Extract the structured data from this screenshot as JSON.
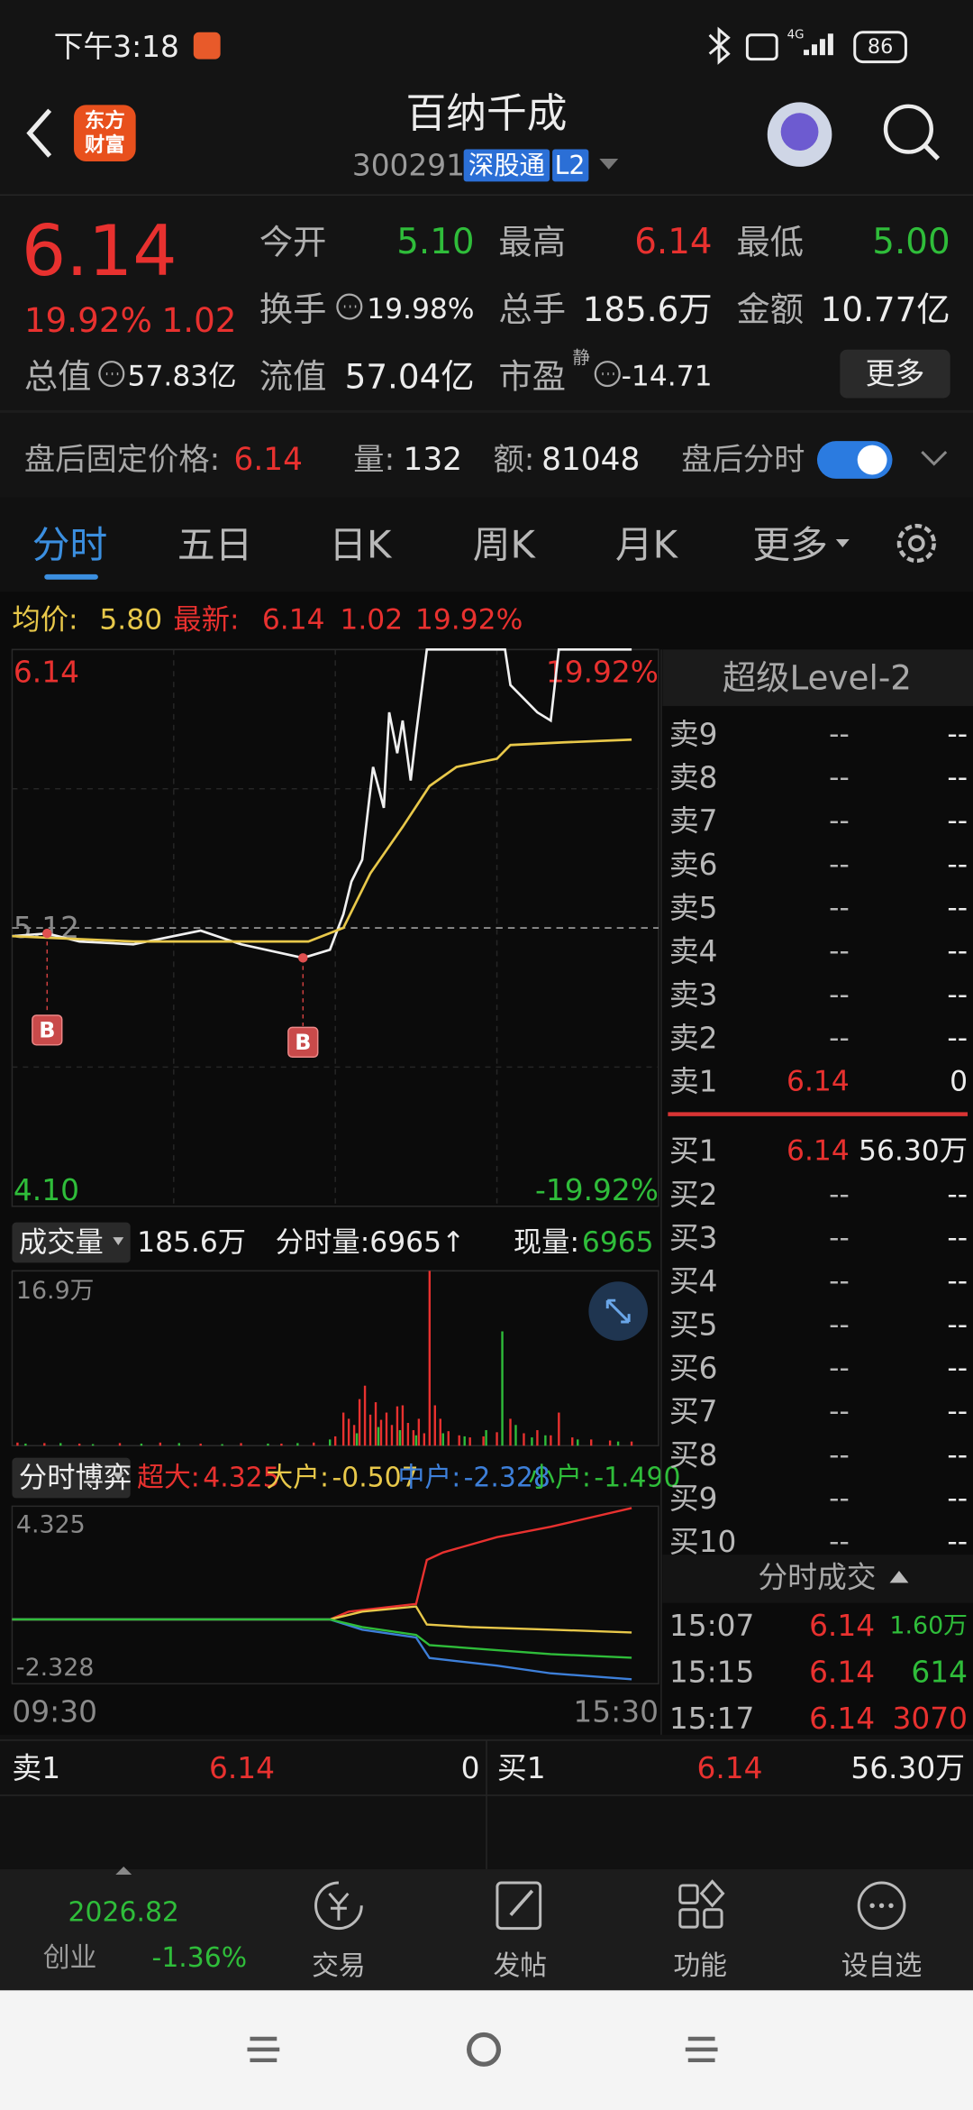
{
  "status_bar": {
    "time": "下午3:18",
    "network": "4G",
    "battery": "86"
  },
  "header": {
    "logo": [
      "东方",
      "财富"
    ],
    "title": "百纳千成",
    "code": "300291",
    "badge": "深股通",
    "level": "L2"
  },
  "quote": {
    "price": "6.14",
    "change_pct": "19.92%",
    "change": "1.02",
    "stats": [
      {
        "label": "今开",
        "value": "5.10"
      },
      {
        "label": "最高",
        "value": "6.14"
      },
      {
        "label": "最低",
        "value": "5.00"
      },
      {
        "label": "换手",
        "value": "19.98%"
      },
      {
        "label": "总手",
        "value": "185.6万"
      },
      {
        "label": "金额",
        "value": "10.77亿"
      },
      {
        "label": "总值",
        "value": "57.83亿"
      },
      {
        "label": "流值",
        "value": "57.04亿"
      },
      {
        "label": "市盈",
        "sup": "静",
        "value": "-14.71"
      }
    ],
    "more": "更多"
  },
  "after_hours": {
    "label": "盘后固定价格:",
    "price": "6.14",
    "volume_label": "量:",
    "volume": "132",
    "amount_label": "额:",
    "amount": "81048",
    "toggle_label": "盘后分时"
  },
  "tabs": [
    "分时",
    "五日",
    "日K",
    "周K",
    "月K",
    "更多"
  ],
  "intraday": {
    "avg_label": "均价:",
    "avg": "5.80",
    "latest_label": "最新:",
    "latest": "6.14",
    "change": "1.02",
    "change_pct": "19.92%",
    "chart_data": {
      "type": "line",
      "xlim": [
        0,
        240
      ],
      "ylim": [
        4.1,
        6.14
      ],
      "yticks": [
        6.14,
        5.12,
        {
          "value": 4.1,
          "label": "4.10"
        }
      ],
      "ytick_colors": [
        "#e8312f",
        "#8a8a8a",
        "#2fbd3a"
      ],
      "y2lim": [
        -19.92,
        19.92
      ],
      "y2ticks": [
        {
          "value": 19.92,
          "label": "19.92%"
        },
        {
          "value": -19.92,
          "label": "-19.92%"
        }
      ],
      "y2tick_colors": [
        "#e8312f",
        "#2fbd3a"
      ],
      "series": [
        {
          "color": "#f0f0f0",
          "x": [
            0,
            13,
            25,
            45,
            70,
            85,
            108,
            118,
            123,
            126,
            130,
            134,
            138,
            140,
            143,
            145,
            148,
            150,
            154,
            156,
            183,
            185,
            190,
            195,
            200,
            203,
            230
          ],
          "values": [
            5.09,
            5.1,
            5.07,
            5.06,
            5.11,
            5.06,
            5.01,
            5.04,
            5.17,
            5.29,
            5.37,
            5.71,
            5.56,
            5.91,
            5.76,
            5.88,
            5.66,
            5.83,
            6.14,
            6.14,
            6.14,
            6.01,
            5.96,
            5.91,
            5.88,
            6.14,
            6.14
          ]
        },
        {
          "color": "#e8c84a",
          "x": [
            0,
            45,
            110,
            123,
            133,
            145,
            155,
            165,
            180,
            185,
            205,
            230
          ],
          "values": [
            5.09,
            5.07,
            5.07,
            5.12,
            5.32,
            5.49,
            5.64,
            5.71,
            5.74,
            5.79,
            5.8,
            5.81
          ]
        }
      ],
      "markers": [
        {
          "x": 13,
          "value": 5.1,
          "label": "B"
        },
        {
          "x": 108,
          "value": 5.01,
          "label": "B"
        }
      ]
    }
  },
  "volume": {
    "label": "成交量",
    "total": "185.6万",
    "tick": "分时量:6965↑",
    "now_label": "现量:",
    "now": "6965",
    "chart_data": {
      "type": "bar",
      "xlim": [
        0,
        240
      ],
      "ylim": [
        0,
        169000
      ],
      "yticks": [
        {
          "value": 169000,
          "label": "16.9万"
        }
      ],
      "series": [
        {
          "color": "#e8312f",
          "x": [
            2,
            12,
            25,
            40,
            55,
            70,
            85,
            100,
            112,
            120,
            123,
            125,
            127,
            129,
            131,
            133,
            135,
            137,
            139,
            141,
            143,
            145,
            147,
            149,
            151,
            153,
            155,
            157,
            159,
            162,
            166,
            170,
            175,
            180,
            185,
            190,
            195,
            200,
            203,
            208,
            215,
            222,
            230
          ],
          "values": [
            3000,
            2500,
            2000,
            2500,
            3000,
            2000,
            2500,
            2000,
            3000,
            9000,
            32000,
            26000,
            20000,
            45000,
            58000,
            30000,
            42000,
            25000,
            32000,
            20000,
            38000,
            39000,
            22000,
            15000,
            26000,
            12000,
            169000,
            39000,
            26000,
            14000,
            10000,
            8000,
            9000,
            13000,
            26000,
            12000,
            15000,
            10000,
            32000,
            8000,
            6000,
            5000,
            4000
          ]
        },
        {
          "color": "#2fbd3a",
          "x": [
            5,
            18,
            30,
            48,
            62,
            78,
            95,
            106,
            118,
            128,
            136,
            144,
            150,
            160,
            168,
            176,
            182,
            187,
            193,
            198,
            210,
            225
          ],
          "values": [
            2000,
            2500,
            1500,
            2000,
            2500,
            1500,
            2000,
            2500,
            6000,
            12000,
            18000,
            15000,
            10000,
            12000,
            9000,
            15000,
            110500,
            20000,
            8000,
            10000,
            6000,
            4000
          ]
        }
      ]
    }
  },
  "flow": {
    "label": "分时博弈",
    "legend": [
      {
        "label": "超大:",
        "value": "4.325"
      },
      {
        "label": "大户:",
        "value": "-0.507"
      },
      {
        "label": "中户:",
        "value": "-2.328"
      },
      {
        "label": "小户:",
        "value": "-1.490"
      }
    ],
    "max_label": "4.325",
    "min_label": "-2.328",
    "axis_start": "09:30",
    "axis_end": "15:30",
    "chart_data": {
      "type": "line",
      "xlim": [
        0,
        240
      ],
      "ylim": [
        -2.5,
        4.4
      ],
      "series": [
        {
          "color": "#e8312f",
          "x": [
            0,
            118,
            125,
            150,
            154,
            160,
            180,
            200,
            230
          ],
          "values": [
            0,
            0,
            0.3,
            0.6,
            2.31,
            2.6,
            3.2,
            3.6,
            4.325
          ]
        },
        {
          "color": "#e8c84a",
          "x": [
            0,
            118,
            130,
            150,
            154,
            170,
            200,
            230
          ],
          "values": [
            0,
            0,
            0.3,
            0.5,
            -0.2,
            -0.3,
            -0.4,
            -0.507
          ]
        },
        {
          "color": "#3d7fd9",
          "x": [
            0,
            118,
            130,
            150,
            155,
            180,
            200,
            230
          ],
          "values": [
            0,
            0,
            -0.4,
            -0.7,
            -1.5,
            -1.8,
            -2.1,
            -2.328
          ]
        },
        {
          "color": "#2fbd3a",
          "x": [
            0,
            118,
            130,
            150,
            155,
            180,
            200,
            230
          ],
          "values": [
            0,
            0,
            -0.3,
            -0.6,
            -1.0,
            -1.2,
            -1.35,
            -1.49
          ]
        }
      ]
    }
  },
  "level2": {
    "title": "超级Level-2",
    "asks": [
      {
        "label": "卖9",
        "price": "--",
        "volume": "--"
      },
      {
        "label": "卖8",
        "price": "--",
        "volume": "--"
      },
      {
        "label": "卖7",
        "price": "--",
        "volume": "--"
      },
      {
        "label": "卖6",
        "price": "--",
        "volume": "--"
      },
      {
        "label": "卖5",
        "price": "--",
        "volume": "--"
      },
      {
        "label": "卖4",
        "price": "--",
        "volume": "--"
      },
      {
        "label": "卖3",
        "price": "--",
        "volume": "--"
      },
      {
        "label": "卖2",
        "price": "--",
        "volume": "--"
      },
      {
        "label": "卖1",
        "price": "6.14",
        "volume": "0"
      }
    ],
    "bids": [
      {
        "label": "买1",
        "price": "6.14",
        "volume": "56.30万"
      },
      {
        "label": "买2",
        "price": "--",
        "volume": "--"
      },
      {
        "label": "买3",
        "price": "--",
        "volume": "--"
      },
      {
        "label": "买4",
        "price": "--",
        "volume": "--"
      },
      {
        "label": "买5",
        "price": "--",
        "volume": "--"
      },
      {
        "label": "买6",
        "price": "--",
        "volume": "--"
      },
      {
        "label": "买7",
        "price": "--",
        "volume": "--"
      },
      {
        "label": "买8",
        "price": "--",
        "volume": "--"
      },
      {
        "label": "买9",
        "price": "--",
        "volume": "--"
      },
      {
        "label": "买10",
        "price": "--",
        "volume": "--"
      }
    ]
  },
  "trades": {
    "title": "分时成交",
    "rows": [
      {
        "time": "15:07",
        "price": "6.14",
        "volume": "1.60万"
      },
      {
        "time": "15:15",
        "price": "6.14",
        "volume": "614"
      },
      {
        "time": "15:17",
        "price": "6.14",
        "volume": "3070"
      }
    ]
  },
  "bottom_quote": {
    "ask": {
      "label": "卖1",
      "price": "6.14",
      "volume": "0"
    },
    "bid": {
      "label": "买1",
      "price": "6.14",
      "volume": "56.30万"
    }
  },
  "nav": {
    "index_value": "2026.82",
    "index_name": "创业",
    "index_change": "-1.36%",
    "items": [
      "交易",
      "发帖",
      "功能",
      "设自选"
    ]
  }
}
